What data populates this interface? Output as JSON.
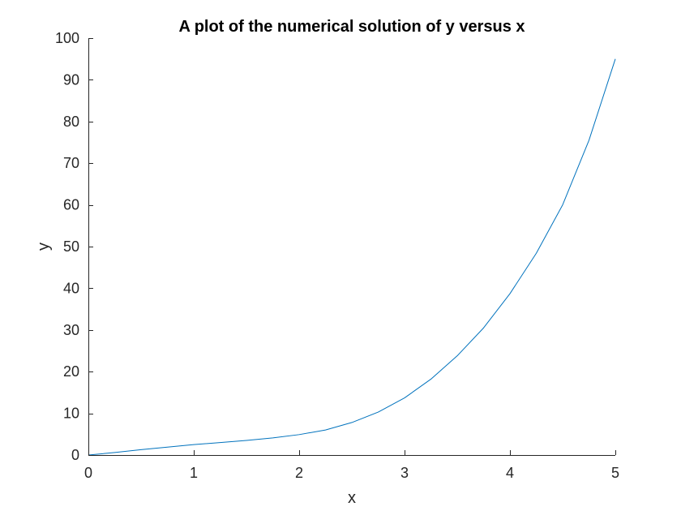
{
  "chart_data": {
    "type": "line",
    "title": "A plot of the numerical solution of y versus x",
    "xlabel": "x",
    "ylabel": "y",
    "xlim": [
      0,
      5
    ],
    "ylim": [
      0,
      100
    ],
    "xticks": [
      "0",
      "1",
      "2",
      "3",
      "4",
      "5"
    ],
    "yticks": [
      "0",
      "10",
      "20",
      "30",
      "40",
      "50",
      "60",
      "70",
      "80",
      "90",
      "100"
    ],
    "grid": false,
    "legend": "none",
    "series": [
      {
        "color": "#0072BD",
        "x": [
          0,
          0.25,
          0.5,
          0.75,
          1.0,
          1.25,
          1.5,
          1.75,
          2.0,
          2.25,
          2.5,
          2.75,
          3.0,
          3.25,
          3.5,
          3.75,
          4.0,
          4.25,
          4.5,
          4.75,
          5.0
        ],
        "y": [
          0,
          0.6,
          1.3,
          1.9,
          2.5,
          3.0,
          3.5,
          4.1,
          4.9,
          6.0,
          7.8,
          10.3,
          13.7,
          18.2,
          23.8,
          30.5,
          38.7,
          48.4,
          60.0,
          75.5,
          95.0
        ]
      }
    ]
  }
}
